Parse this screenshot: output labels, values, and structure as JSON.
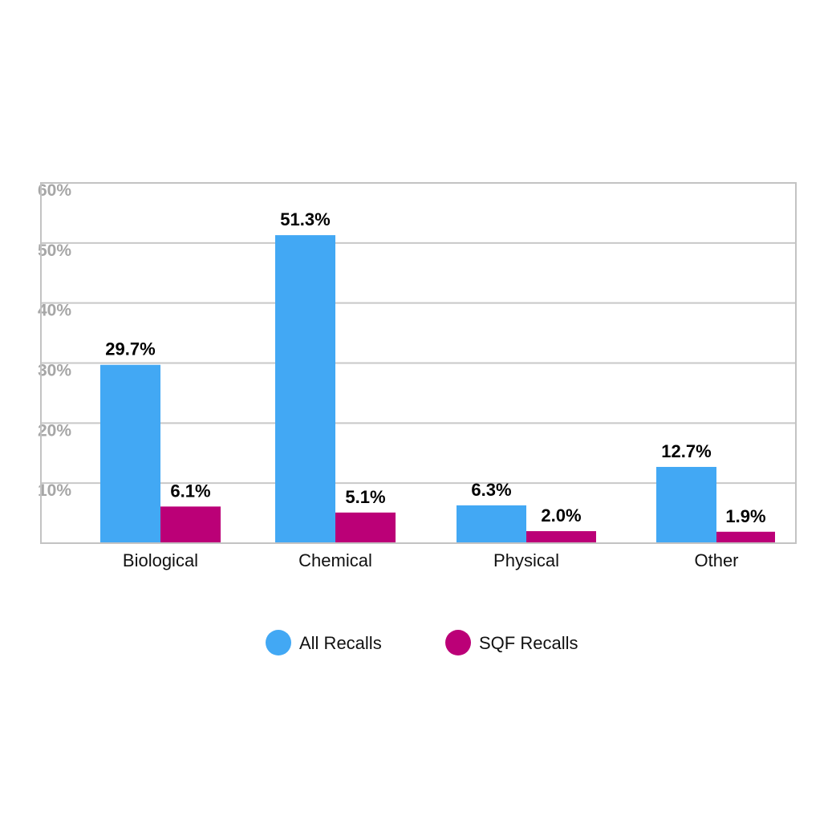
{
  "chart_data": {
    "type": "bar",
    "categories": [
      "Biological",
      "Chemical",
      "Physical",
      "Other"
    ],
    "series": [
      {
        "name": "All Recalls",
        "color": "#42a8f4",
        "values": [
          29.7,
          51.3,
          6.3,
          12.7
        ],
        "labels": [
          "29.7%",
          "51.3%",
          "6.3%",
          "12.7%"
        ]
      },
      {
        "name": "SQF Recalls",
        "color": "#bb0077",
        "values": [
          6.1,
          5.1,
          2.0,
          1.9
        ],
        "labels": [
          "6.1%",
          "5.1%",
          "2.0%",
          "1.9%"
        ]
      }
    ],
    "ylim": [
      0,
      60
    ],
    "yticks": [
      10,
      20,
      30,
      40,
      50,
      60
    ],
    "ytick_labels": [
      "10%",
      "20%",
      "30%",
      "40%",
      "50%",
      "60%"
    ],
    "grid": true,
    "legend_position": "bottom"
  }
}
